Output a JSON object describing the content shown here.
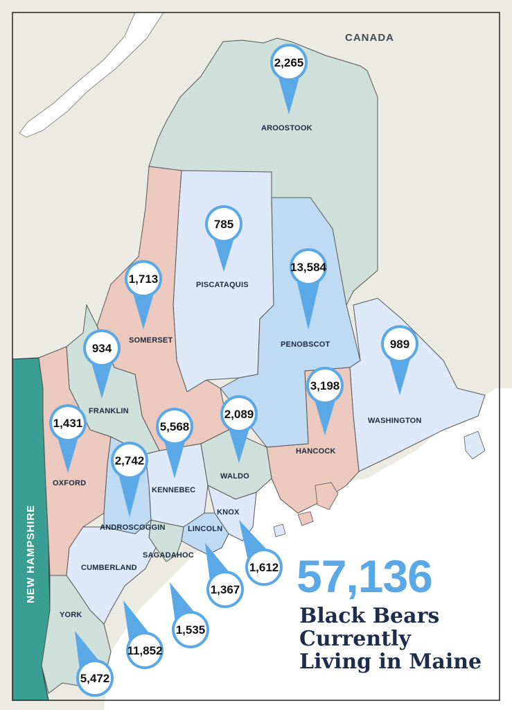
{
  "colors": {
    "land_background": "#ebebe4",
    "water": "#ffffff",
    "border": "#222222",
    "county_green": "#cfdfd9",
    "county_pink": "#ecc9bf",
    "county_light_blue": "#dde9f8",
    "county_mid_blue": "#bfdaf3",
    "new_hampshire": "#3a9e93",
    "pin": "#5aa8e6",
    "total_text": "#5aa8e6",
    "caption_text": "#1d2c4c"
  },
  "labels": {
    "canada": "CANADA",
    "new_hampshire": "NEW HAMPSHIRE"
  },
  "counties": [
    {
      "name": "AROOSTOOK",
      "bears": "2,265"
    },
    {
      "name": "PISCATAQUIS",
      "bears": "785"
    },
    {
      "name": "PENOBSCOT",
      "bears": "13,584"
    },
    {
      "name": "SOMERSET",
      "bears": "1,713"
    },
    {
      "name": "FRANKLIN",
      "bears": "934"
    },
    {
      "name": "WASHINGTON",
      "bears": "989"
    },
    {
      "name": "OXFORD",
      "bears": "1,431"
    },
    {
      "name": "KENNEBEC",
      "bears": "5,568"
    },
    {
      "name": "WALDO",
      "bears": "2,089"
    },
    {
      "name": "HANCOCK",
      "bears": "3,198"
    },
    {
      "name": "ANDROSCOGGIN",
      "bears": "2,742"
    },
    {
      "name": "KNOX",
      "bears": "1,612"
    },
    {
      "name": "LINCOLN",
      "bears": "1,367"
    },
    {
      "name": "SAGADAHOC",
      "bears": "1,535"
    },
    {
      "name": "CUMBERLAND",
      "bears": "11,852"
    },
    {
      "name": "YORK",
      "bears": "5,472"
    }
  ],
  "total": "57,136",
  "caption_lines": [
    "Black Bears",
    "Currently",
    "Living in Maine"
  ]
}
